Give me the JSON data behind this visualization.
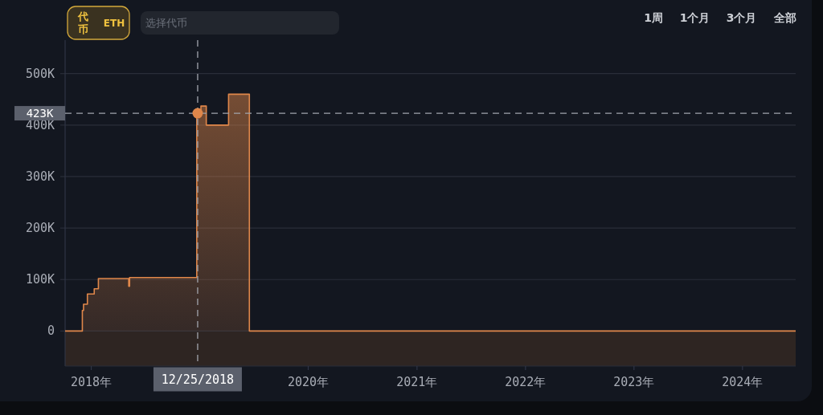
{
  "chart_data": {
    "type": "area",
    "annotations": [
      "代币",
      "ETH",
      "选择代币",
      "1周",
      "1个月",
      "3个月",
      "全部"
    ],
    "series": [
      {
        "color": "#e0874a",
        "x": [
          "2017-10-05",
          "2017-12-02",
          "2017-12-02",
          "2017-12-06",
          "2017-12-06",
          "2017-12-19",
          "2017-12-19",
          "2018-01-11",
          "2018-01-11",
          "2018-01-25",
          "2018-01-25",
          "2018-05-07",
          "2018-05-07",
          "2018-05-10",
          "2018-05-10",
          "2018-12-22",
          "2018-12-22",
          "2019-01-05",
          "2019-01-05",
          "2019-01-23",
          "2019-01-23",
          "2019-04-08",
          "2019-04-08",
          "2019-06-17",
          "2019-06-17",
          "2024-06-28"
        ],
        "values": [
          0,
          0,
          40000,
          40000,
          52000,
          52000,
          72000,
          72000,
          82000,
          82000,
          102000,
          102000,
          87000,
          87000,
          104000,
          104000,
          423000,
          423000,
          437000,
          437000,
          400000,
          400000,
          460000,
          460000,
          0,
          0
        ]
      },
      {
        "type": "scatter",
        "color": "#e0874a",
        "marker": "circle",
        "x": [
          "2018-12-25"
        ],
        "values": [
          423000
        ]
      }
    ],
    "xlim": [
      "2017-10-05",
      "2024-06-28"
    ],
    "xticks": [
      {
        "value": "2018-01-01",
        "label": "2018年"
      },
      {
        "value": "2020-01-01",
        "label": "2020年"
      },
      {
        "value": "2021-01-01",
        "label": "2021年"
      },
      {
        "value": "2022-01-01",
        "label": "2022年"
      },
      {
        "value": "2023-01-01",
        "label": "2023年"
      },
      {
        "value": "2024-01-01",
        "label": "2024年"
      }
    ],
    "ylim": [
      -68000,
      565000
    ],
    "yticks": [
      0,
      {
        "value": 100000,
        "label": "100K"
      },
      {
        "value": 200000,
        "label": "200K"
      },
      {
        "value": 300000,
        "label": "300K"
      },
      {
        "value": 400000,
        "label": "400K"
      },
      {
        "value": 500000,
        "label": "500K"
      }
    ],
    "grid": "y",
    "ref_lines": [
      {
        "axis": "y",
        "value": 423000,
        "label": "423K",
        "color": "#a0a4ac",
        "line_style": "dashed"
      },
      {
        "axis": "x",
        "value": "2018-12-25",
        "label": "12/25/2018",
        "color": "#a0a4ac",
        "line_style": "dashed"
      }
    ],
    "bands": [
      {
        "axis": "y",
        "from": -68000,
        "to": 0,
        "color": "#2e2522"
      }
    ]
  }
}
